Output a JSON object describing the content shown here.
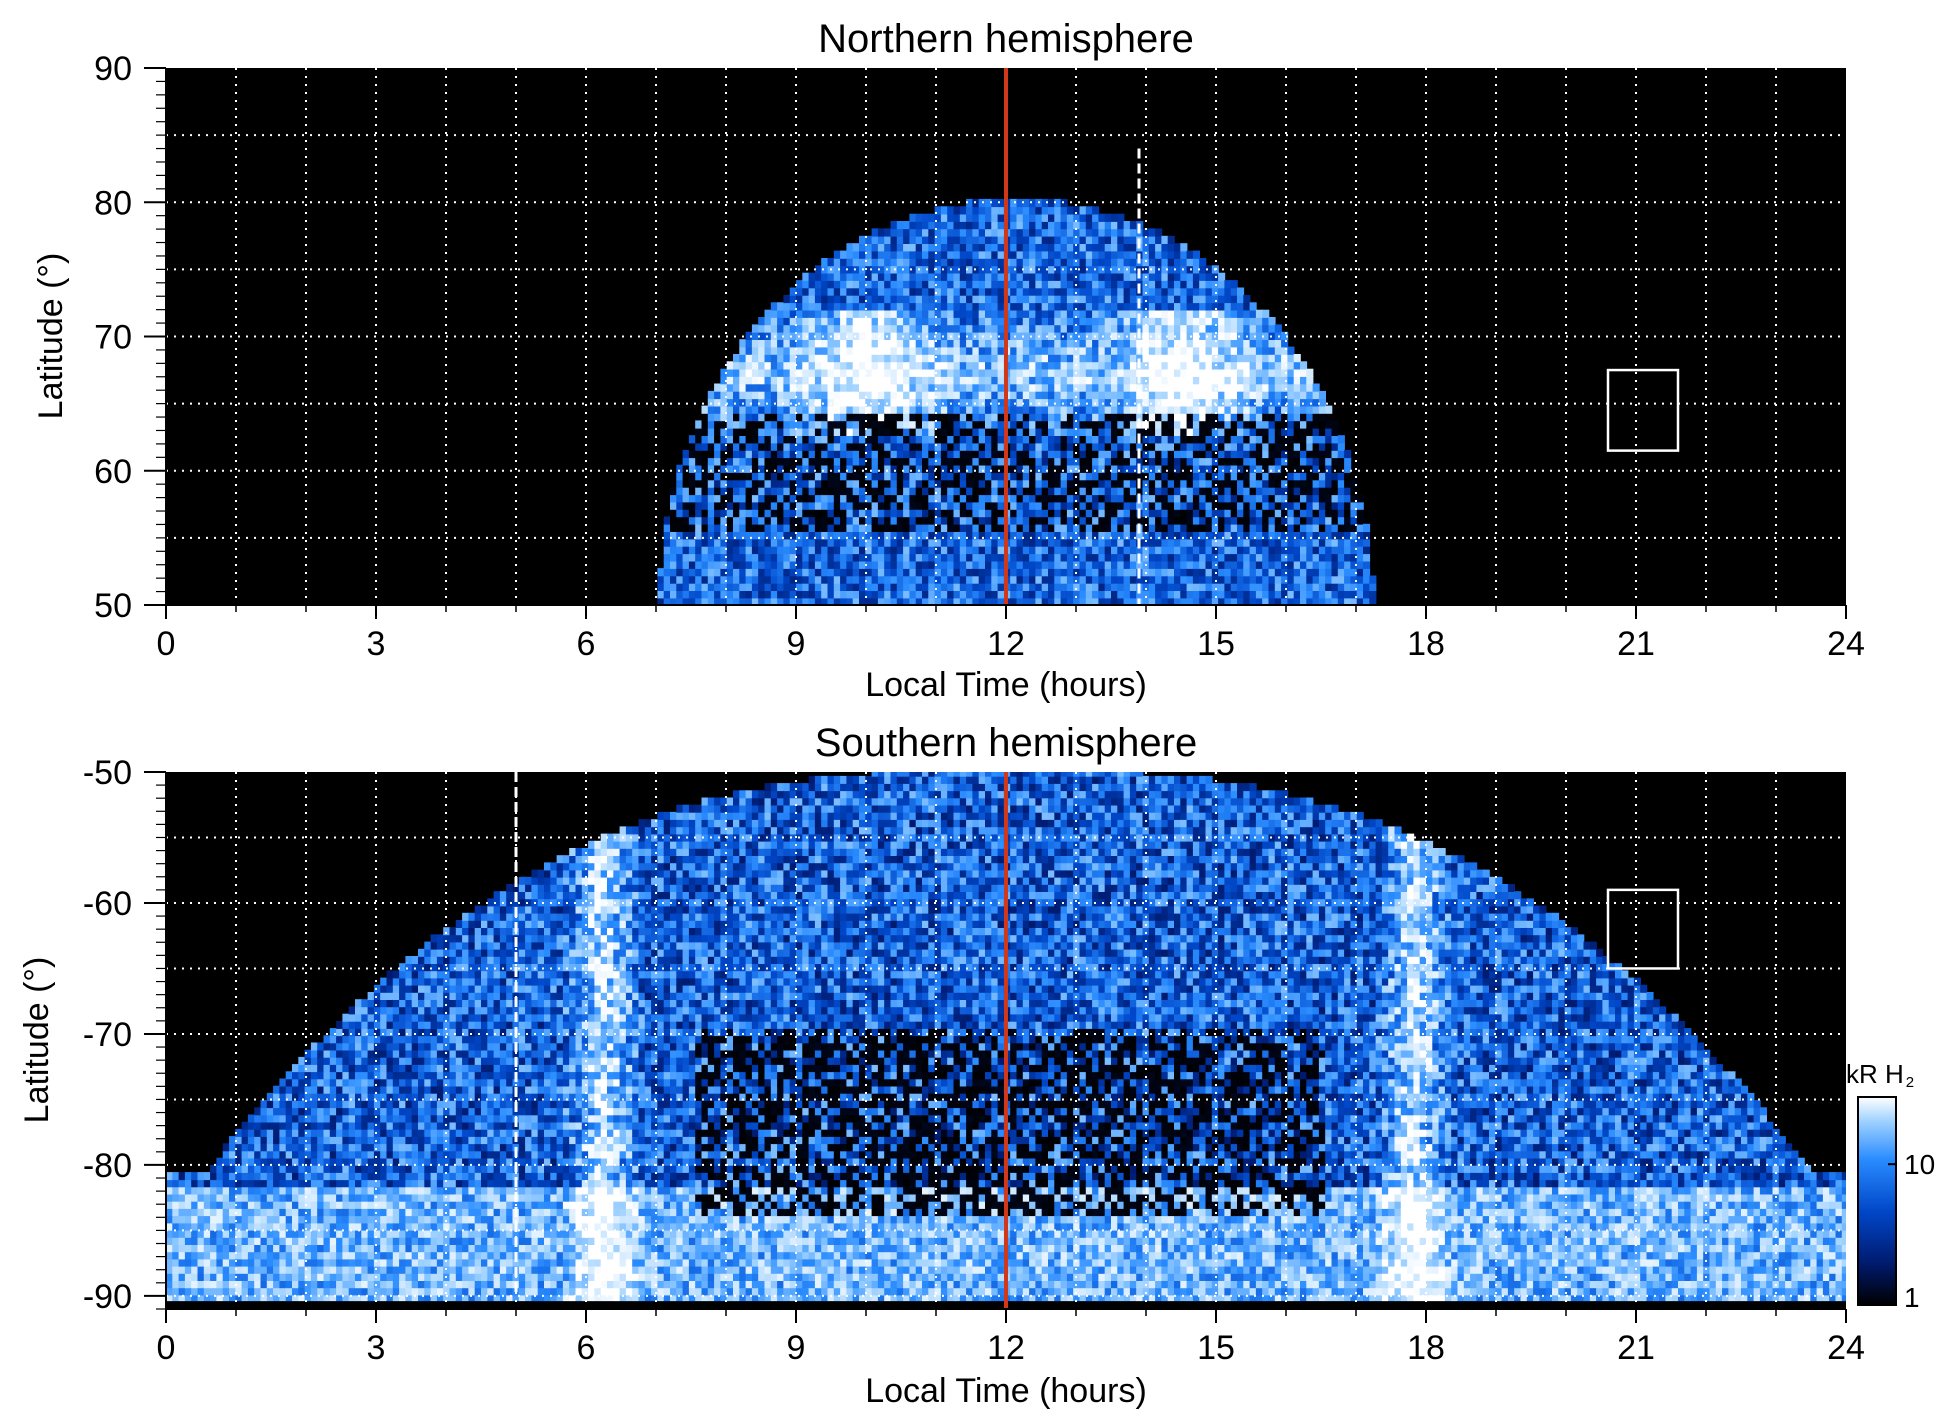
{
  "chart_data": [
    {
      "type": "heatmap",
      "title": "Northern hemisphere",
      "xlabel": "Local Time (hours)",
      "ylabel": "Latitude (°)",
      "xlim": [
        0,
        24
      ],
      "ylim": [
        50,
        90
      ],
      "x_ticks": [
        "0",
        "3",
        "6",
        "9",
        "12",
        "15",
        "18",
        "21",
        "24"
      ],
      "y_ticks": [
        "50",
        "60",
        "70",
        "80",
        "90"
      ],
      "grid": true,
      "background": "#000000",
      "coverage": {
        "lt_min": 7,
        "lt_max": 17.2,
        "lat_max": 80
      },
      "auroral_oval": {
        "lat_center": 67,
        "bright_lt": [
          10,
          14.5
        ]
      },
      "reference_line": {
        "local_time": 12,
        "color": "#d0381c"
      },
      "dashed_line": {
        "local_time": 13.9,
        "lat_min": 50,
        "lat_max": 84
      },
      "box": {
        "lt": [
          20.6,
          21.6
        ],
        "lat": [
          61.5,
          67.5
        ]
      }
    },
    {
      "type": "heatmap",
      "title": "Southern hemisphere",
      "xlabel": "Local Time (hours)",
      "ylabel": "Latitude (°)",
      "xlim": [
        0,
        24
      ],
      "ylim": [
        -91,
        -50
      ],
      "x_ticks": [
        "0",
        "3",
        "6",
        "9",
        "12",
        "15",
        "18",
        "21",
        "24"
      ],
      "y_ticks": [
        "-90",
        "-80",
        "-70",
        "-60",
        "-50"
      ],
      "grid": true,
      "background": "#000000",
      "coverage": {
        "lt_min": 0,
        "lt_max": 24,
        "lat_edge_min": -81
      },
      "auroral_oval": {
        "lat_center": -75,
        "bright_lt": [
          6.2,
          17.8
        ]
      },
      "reference_line": {
        "local_time": 12,
        "color": "#d0381c"
      },
      "dashed_line": {
        "local_time": 5,
        "lat_min": -90,
        "lat_max": -50
      },
      "box": {
        "lt": [
          20.6,
          21.6
        ],
        "lat": [
          -65,
          -59
        ]
      }
    }
  ],
  "colorbar": {
    "label_main": "kR H",
    "label_sub": "2",
    "ticks": [
      "10",
      "1"
    ],
    "tick_values": [
      10,
      1
    ],
    "range": [
      1,
      30
    ],
    "scale": "log",
    "colors": [
      "#000000",
      "#001a6e",
      "#0047c8",
      "#2a8cff",
      "#9cd0ff",
      "#ffffff"
    ]
  }
}
